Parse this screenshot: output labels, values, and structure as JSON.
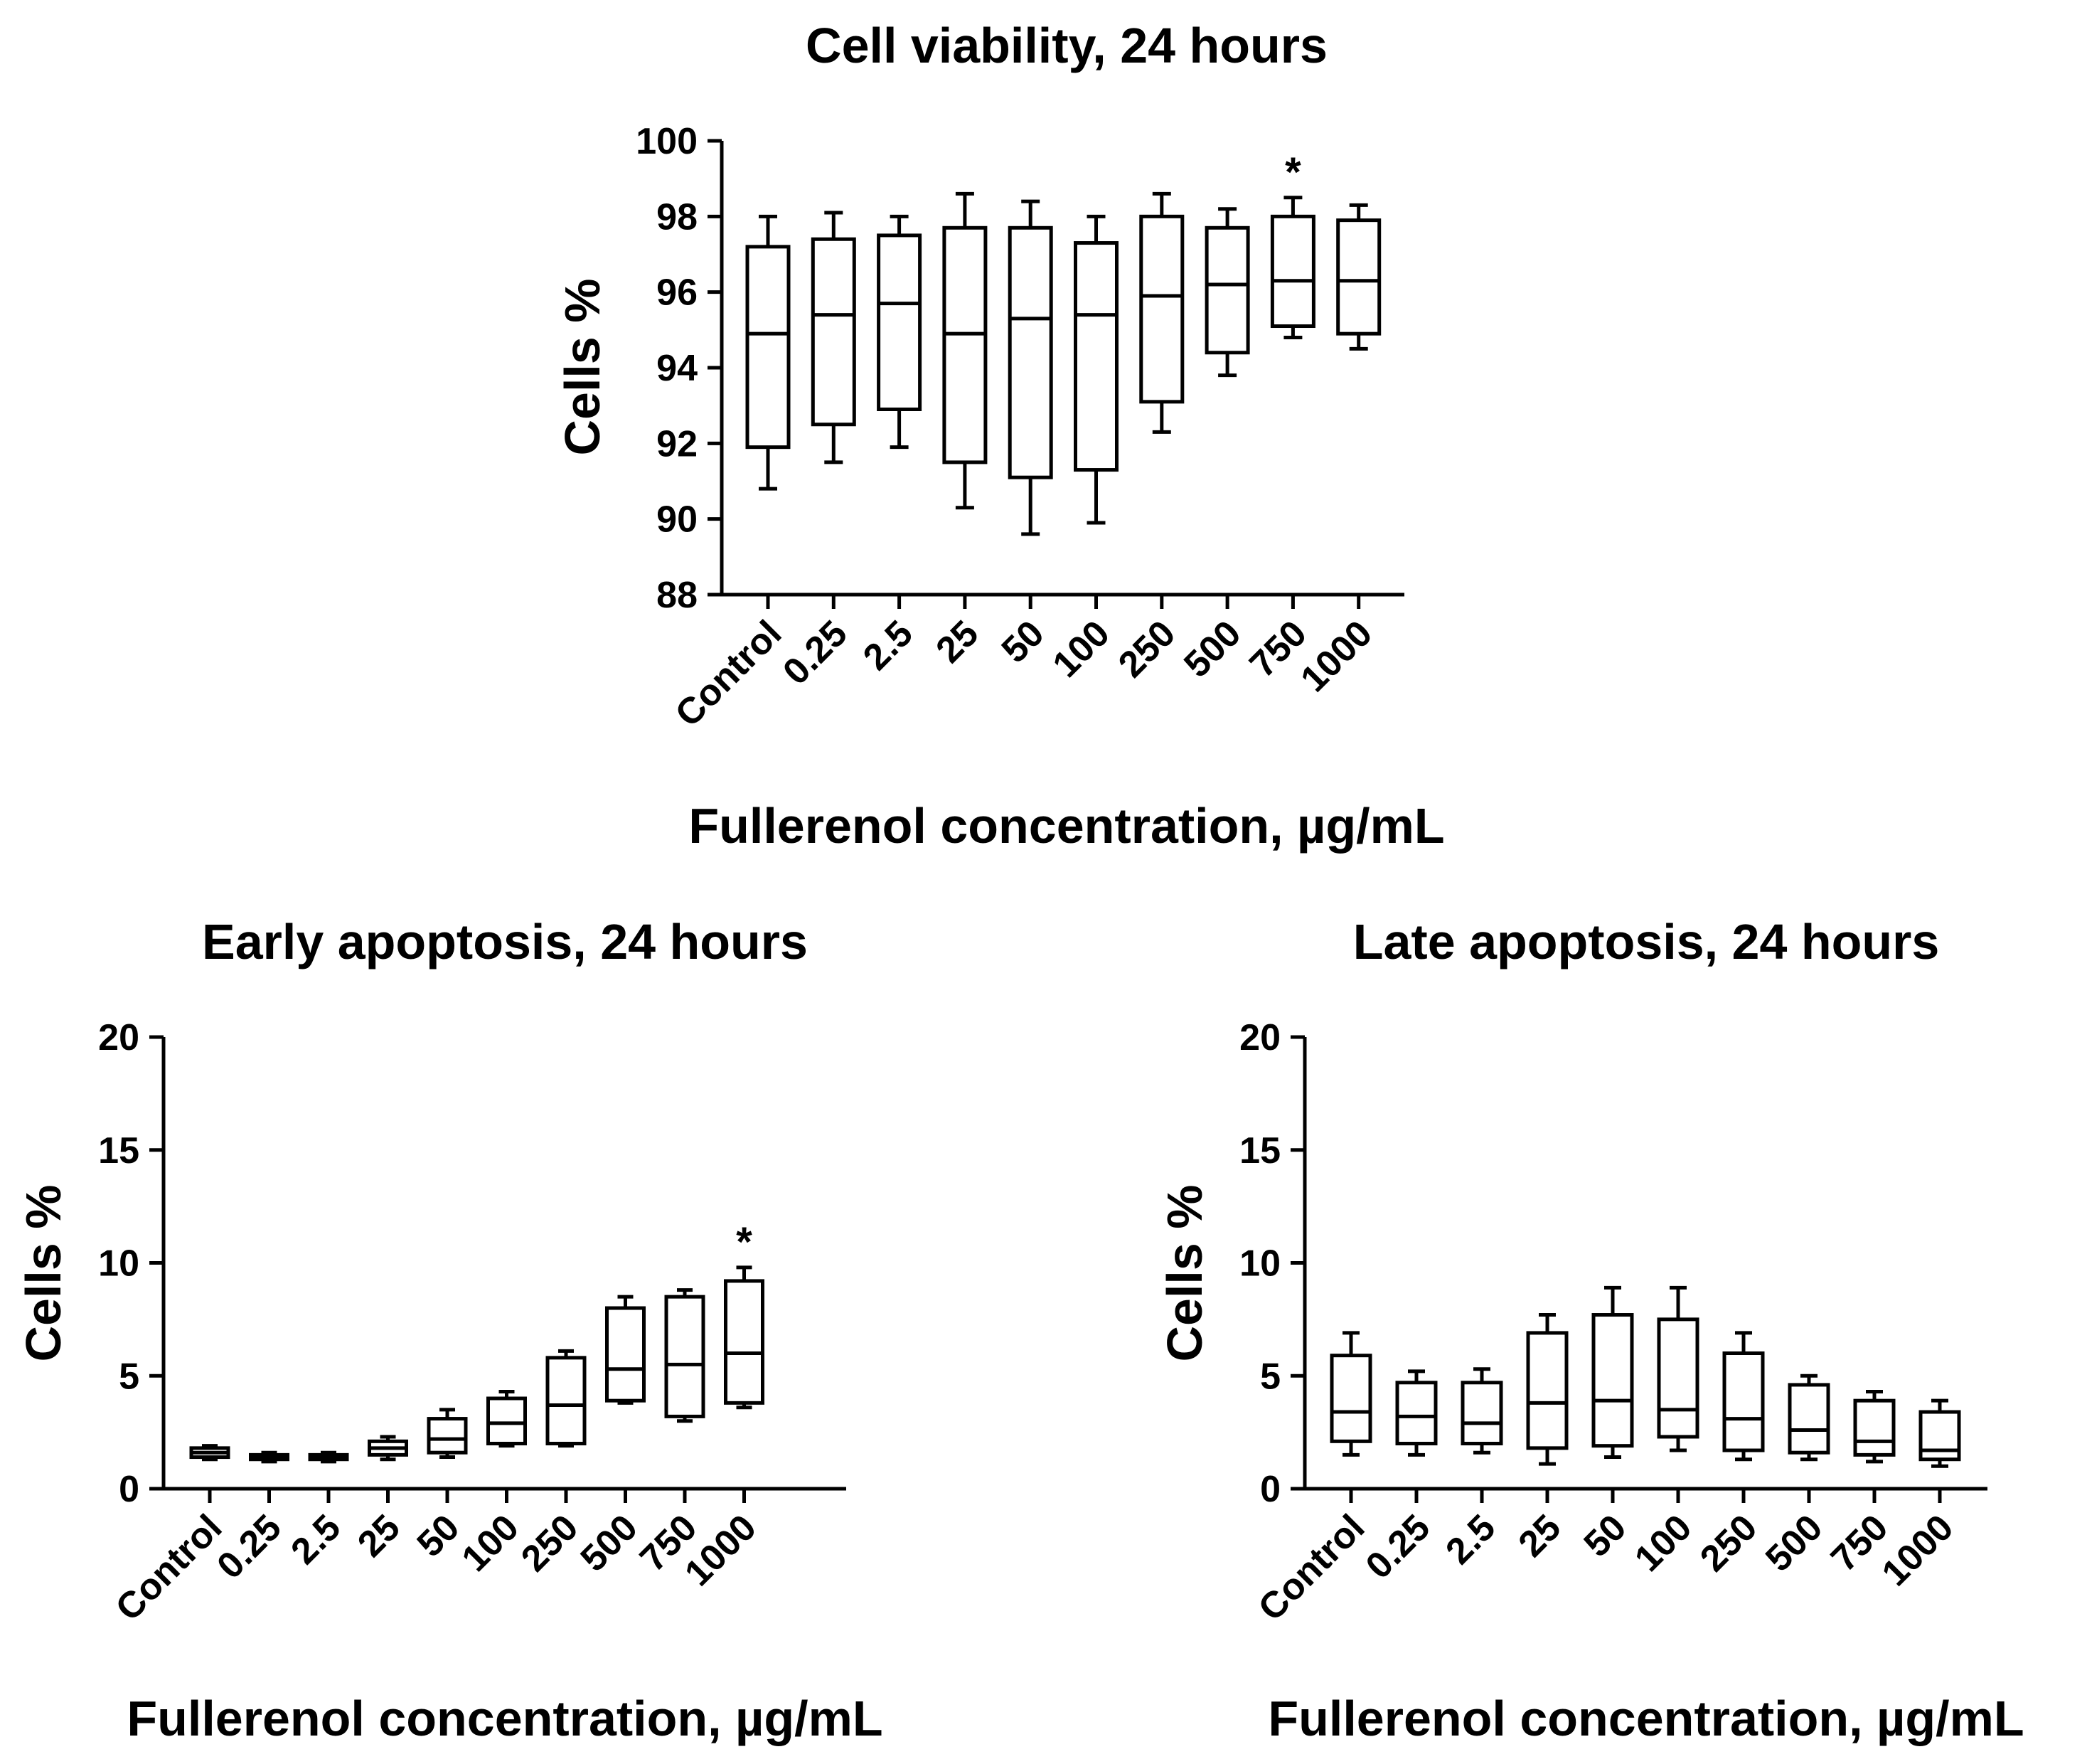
{
  "figure_title": "",
  "chart_data": [
    {
      "type": "box",
      "title": "Cell viability, 24 hours",
      "xlabel": "Fullerenol concentration, µg/mL",
      "ylabel": "Cells %",
      "ylim": [
        88,
        100
      ],
      "yticks": [
        88,
        90,
        92,
        94,
        96,
        98,
        100
      ],
      "categories": [
        "Control",
        "0.25",
        "2.5",
        "25",
        "50",
        "100",
        "250",
        "500",
        "750",
        "1000"
      ],
      "boxes": [
        {
          "min": 90.8,
          "q1": 91.9,
          "median": 94.9,
          "q3": 97.2,
          "max": 98.0
        },
        {
          "min": 91.5,
          "q1": 92.5,
          "median": 95.4,
          "q3": 97.4,
          "max": 98.1
        },
        {
          "min": 91.9,
          "q1": 92.9,
          "median": 95.7,
          "q3": 97.5,
          "max": 98.0
        },
        {
          "min": 90.3,
          "q1": 91.5,
          "median": 94.9,
          "q3": 97.7,
          "max": 98.6
        },
        {
          "min": 89.6,
          "q1": 91.1,
          "median": 95.3,
          "q3": 97.7,
          "max": 98.4
        },
        {
          "min": 89.9,
          "q1": 91.3,
          "median": 95.4,
          "q3": 97.3,
          "max": 98.0
        },
        {
          "min": 92.3,
          "q1": 93.1,
          "median": 95.9,
          "q3": 98.0,
          "max": 98.6
        },
        {
          "min": 93.8,
          "q1": 94.4,
          "median": 96.2,
          "q3": 97.7,
          "max": 98.2
        },
        {
          "min": 94.8,
          "q1": 95.1,
          "median": 96.3,
          "q3": 98.0,
          "max": 98.5
        },
        {
          "min": 94.5,
          "q1": 94.9,
          "median": 96.3,
          "q3": 97.9,
          "max": 98.3
        }
      ],
      "significance": [
        {
          "category": "750",
          "label": "*"
        }
      ]
    },
    {
      "type": "box",
      "title": "Early apoptosis, 24 hours",
      "xlabel": "Fullerenol concentration, µg/mL",
      "ylabel": "Cells %",
      "ylim": [
        0,
        20
      ],
      "yticks": [
        0,
        5,
        10,
        15,
        20
      ],
      "categories": [
        "Control",
        "0.25",
        "2.5",
        "25",
        "50",
        "100",
        "250",
        "500",
        "750",
        "1000"
      ],
      "boxes": [
        {
          "min": 1.3,
          "q1": 1.4,
          "median": 1.6,
          "q3": 1.8,
          "max": 1.9
        },
        {
          "min": 1.2,
          "q1": 1.3,
          "median": 1.4,
          "q3": 1.5,
          "max": 1.6
        },
        {
          "min": 1.2,
          "q1": 1.3,
          "median": 1.4,
          "q3": 1.5,
          "max": 1.6
        },
        {
          "min": 1.3,
          "q1": 1.5,
          "median": 1.8,
          "q3": 2.1,
          "max": 2.3
        },
        {
          "min": 1.4,
          "q1": 1.6,
          "median": 2.2,
          "q3": 3.1,
          "max": 3.5
        },
        {
          "min": 1.9,
          "q1": 2.0,
          "median": 2.9,
          "q3": 4.0,
          "max": 4.3
        },
        {
          "min": 1.9,
          "q1": 2.0,
          "median": 3.7,
          "q3": 5.8,
          "max": 6.1
        },
        {
          "min": 3.8,
          "q1": 3.9,
          "median": 5.3,
          "q3": 8.0,
          "max": 8.5
        },
        {
          "min": 3.0,
          "q1": 3.2,
          "median": 5.5,
          "q3": 8.5,
          "max": 8.8
        },
        {
          "min": 3.6,
          "q1": 3.8,
          "median": 6.0,
          "q3": 9.2,
          "max": 9.8
        }
      ],
      "significance": [
        {
          "category": "1000",
          "label": "*"
        }
      ]
    },
    {
      "type": "box",
      "title": "Late apoptosis, 24 hours",
      "xlabel": "Fullerenol concentration, µg/mL",
      "ylabel": "Cells %",
      "ylim": [
        0,
        20
      ],
      "yticks": [
        0,
        5,
        10,
        15,
        20
      ],
      "categories": [
        "Control",
        "0.25",
        "2.5",
        "25",
        "50",
        "100",
        "250",
        "500",
        "750",
        "1000"
      ],
      "boxes": [
        {
          "min": 1.5,
          "q1": 2.1,
          "median": 3.4,
          "q3": 5.9,
          "max": 6.9
        },
        {
          "min": 1.5,
          "q1": 2.0,
          "median": 3.2,
          "q3": 4.7,
          "max": 5.2
        },
        {
          "min": 1.6,
          "q1": 2.0,
          "median": 2.9,
          "q3": 4.7,
          "max": 5.3
        },
        {
          "min": 1.1,
          "q1": 1.8,
          "median": 3.8,
          "q3": 6.9,
          "max": 7.7
        },
        {
          "min": 1.4,
          "q1": 1.9,
          "median": 3.9,
          "q3": 7.7,
          "max": 8.9
        },
        {
          "min": 1.7,
          "q1": 2.3,
          "median": 3.5,
          "q3": 7.5,
          "max": 8.9
        },
        {
          "min": 1.3,
          "q1": 1.7,
          "median": 3.1,
          "q3": 6.0,
          "max": 6.9
        },
        {
          "min": 1.3,
          "q1": 1.6,
          "median": 2.6,
          "q3": 4.6,
          "max": 5.0
        },
        {
          "min": 1.2,
          "q1": 1.5,
          "median": 2.1,
          "q3": 3.9,
          "max": 4.3
        },
        {
          "min": 1.0,
          "q1": 1.3,
          "median": 1.7,
          "q3": 3.4,
          "max": 3.9
        }
      ],
      "significance": []
    }
  ]
}
